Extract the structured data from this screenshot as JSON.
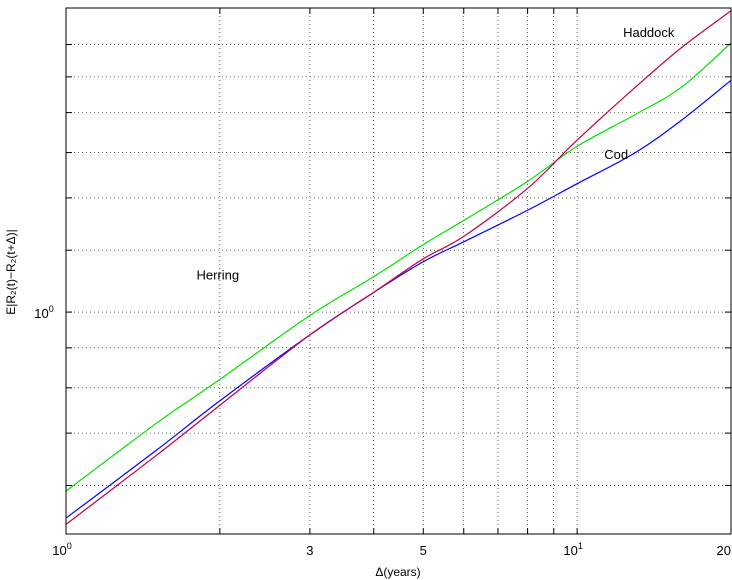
{
  "chart_data": {
    "type": "line",
    "xlabel": "Δ(years)",
    "ylabel": "E|R₂(t)−R₂(t+Δ)|",
    "xscale": "log",
    "yscale": "log",
    "xlim": [
      1,
      20
    ],
    "ylim": [
      0.52,
      2.45
    ],
    "grid": true,
    "x_ticks": [
      {
        "value": 1,
        "base": "10",
        "exp": "0"
      },
      {
        "value": 3,
        "base": "3",
        "exp": ""
      },
      {
        "value": 5,
        "base": "5",
        "exp": ""
      },
      {
        "value": 10,
        "base": "10",
        "exp": "1"
      },
      {
        "value": 20,
        "base": "20",
        "exp": ""
      }
    ],
    "x_minor_grid": [
      2,
      3,
      4,
      5,
      6,
      7,
      8,
      9,
      10,
      20
    ],
    "y_ticks": [
      {
        "value": 1,
        "base": "10",
        "exp": "0"
      }
    ],
    "y_minor_grid": [
      0.6,
      0.7,
      0.8,
      0.9,
      1,
      1.2,
      1.4,
      1.6,
      1.8,
      2,
      2.2
    ],
    "series": [
      {
        "name": "Herring",
        "color": "#00e000",
        "label_at": [
          1.8,
          1.1
        ],
        "x": [
          1,
          1.5,
          2,
          3,
          4,
          5,
          6,
          8,
          10,
          13,
          16,
          20
        ],
        "y": [
          0.59,
          0.72,
          0.82,
          0.99,
          1.11,
          1.22,
          1.31,
          1.47,
          1.63,
          1.79,
          1.94,
          2.21
        ]
      },
      {
        "name": "Cod",
        "color": "#0000ff",
        "label_at": [
          11.3,
          1.57
        ],
        "x": [
          1,
          1.5,
          2,
          3,
          4,
          5,
          6,
          8,
          10,
          13,
          16,
          20
        ],
        "y": [
          0.545,
          0.665,
          0.77,
          0.935,
          1.06,
          1.16,
          1.23,
          1.35,
          1.46,
          1.6,
          1.76,
          1.98
        ]
      },
      {
        "name": "Haddock",
        "color": "#c0004a",
        "label_at": [
          12.3,
          2.25
        ],
        "x": [
          1,
          1.5,
          2,
          3,
          4,
          5,
          6,
          8,
          10,
          13,
          16,
          20
        ],
        "y": [
          0.535,
          0.655,
          0.76,
          0.935,
          1.06,
          1.17,
          1.25,
          1.44,
          1.66,
          1.94,
          2.18,
          2.43
        ]
      }
    ]
  }
}
